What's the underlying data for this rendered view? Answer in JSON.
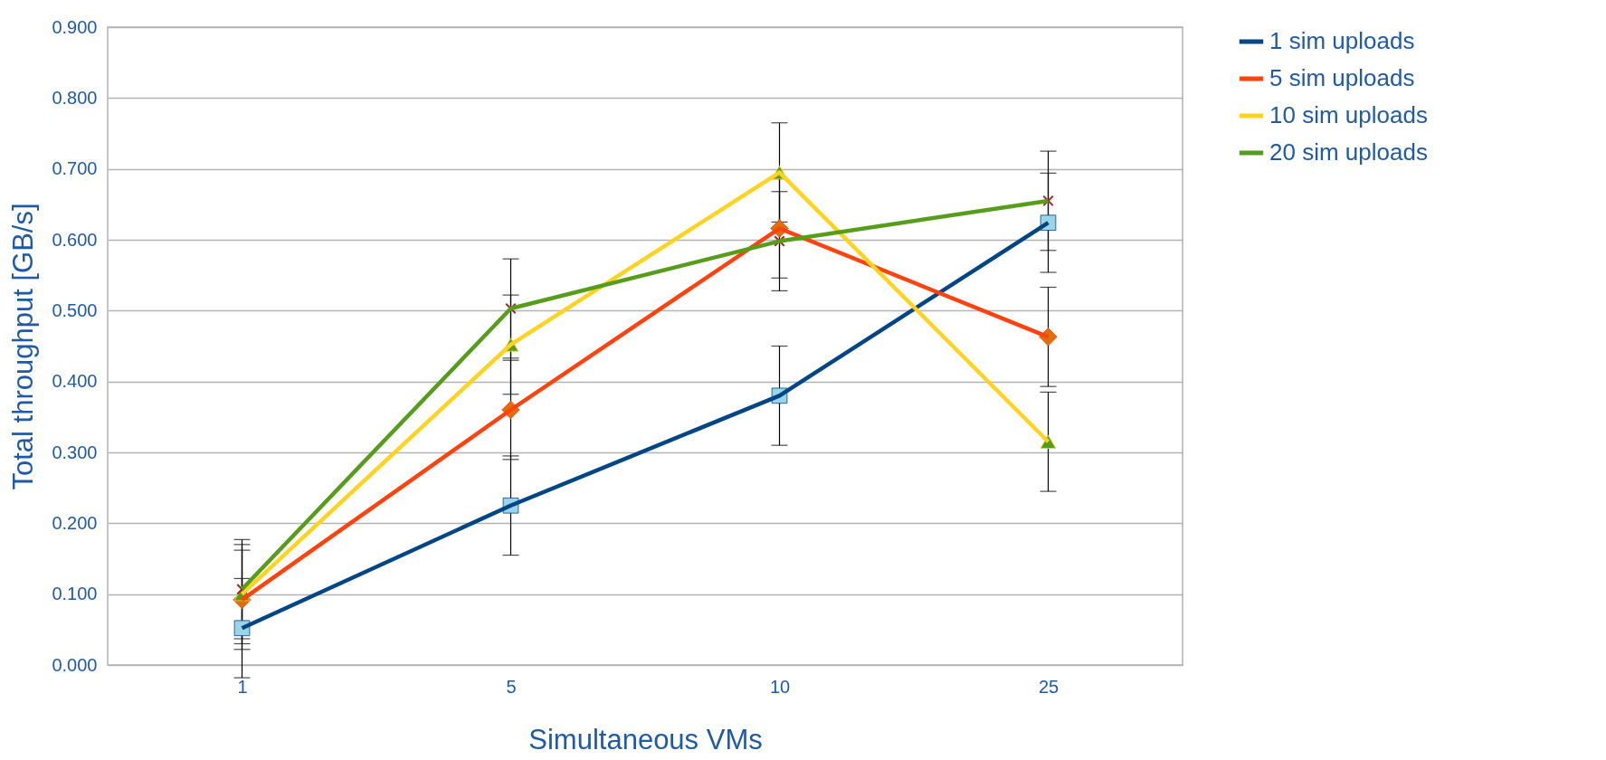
{
  "chart_data": {
    "type": "line",
    "xlabel": "Simultaneous VMs",
    "ylabel": "Total throughput [GB/s]",
    "categories": [
      "1",
      "5",
      "10",
      "25"
    ],
    "series": [
      {
        "name": "1 sim uploads",
        "color": "#004586",
        "marker": "square",
        "colors": [
          "#99d4e8",
          "#99d4e8",
          "#99d4e8",
          "#99d4e8"
        ],
        "values": [
          0.052,
          0.225,
          0.38,
          0.624
        ],
        "errors": [
          0.07,
          0.07,
          0.07,
          0.07
        ]
      },
      {
        "name": "5 sim uploads",
        "color": "#ff420e",
        "marker": "diamond",
        "colors": [
          "#db700c",
          "#db700c",
          "#db700c",
          "#db700c"
        ],
        "values": [
          0.092,
          0.36,
          0.616,
          0.463
        ],
        "errors": [
          0.07,
          0.07,
          0.07,
          0.07
        ]
      },
      {
        "name": "10 sim uploads",
        "color": "#ffd320",
        "marker": "triangle",
        "colors": [
          "#579d1c",
          "#579d1c",
          "#579d1c",
          "#579d1c"
        ],
        "values": [
          0.1,
          0.452,
          0.695,
          0.315
        ],
        "errors": [
          0.07,
          0.07,
          0.07,
          0.07
        ]
      },
      {
        "name": "20 sim uploads",
        "color": "#579d1c",
        "marker": "cross",
        "colors": [
          "#a8232a",
          "#a8232a",
          "#a8232a",
          "#a8232a"
        ],
        "values": [
          0.107,
          0.503,
          0.598,
          0.655
        ],
        "errors": [
          0.07,
          0.07,
          0.07,
          0.07
        ]
      }
    ],
    "ylim": [
      0,
      0.9
    ],
    "yticks": [
      {
        "value": 0,
        "label": "0.000"
      },
      {
        "value": 0.1,
        "label": "0.100"
      },
      {
        "value": 0.2,
        "label": "0.200"
      },
      {
        "value": 0.3,
        "label": "0.300"
      },
      {
        "value": 0.4,
        "label": "0.400"
      },
      {
        "value": 0.5,
        "label": "0.500"
      },
      {
        "value": 0.6,
        "label": "0.600"
      },
      {
        "value": 0.7,
        "label": "0.700"
      },
      {
        "value": 0.8,
        "label": "0.800"
      },
      {
        "value": 0.9,
        "label": "0.900"
      }
    ],
    "grid": "y",
    "legend": "right",
    "line_style": "solid"
  }
}
